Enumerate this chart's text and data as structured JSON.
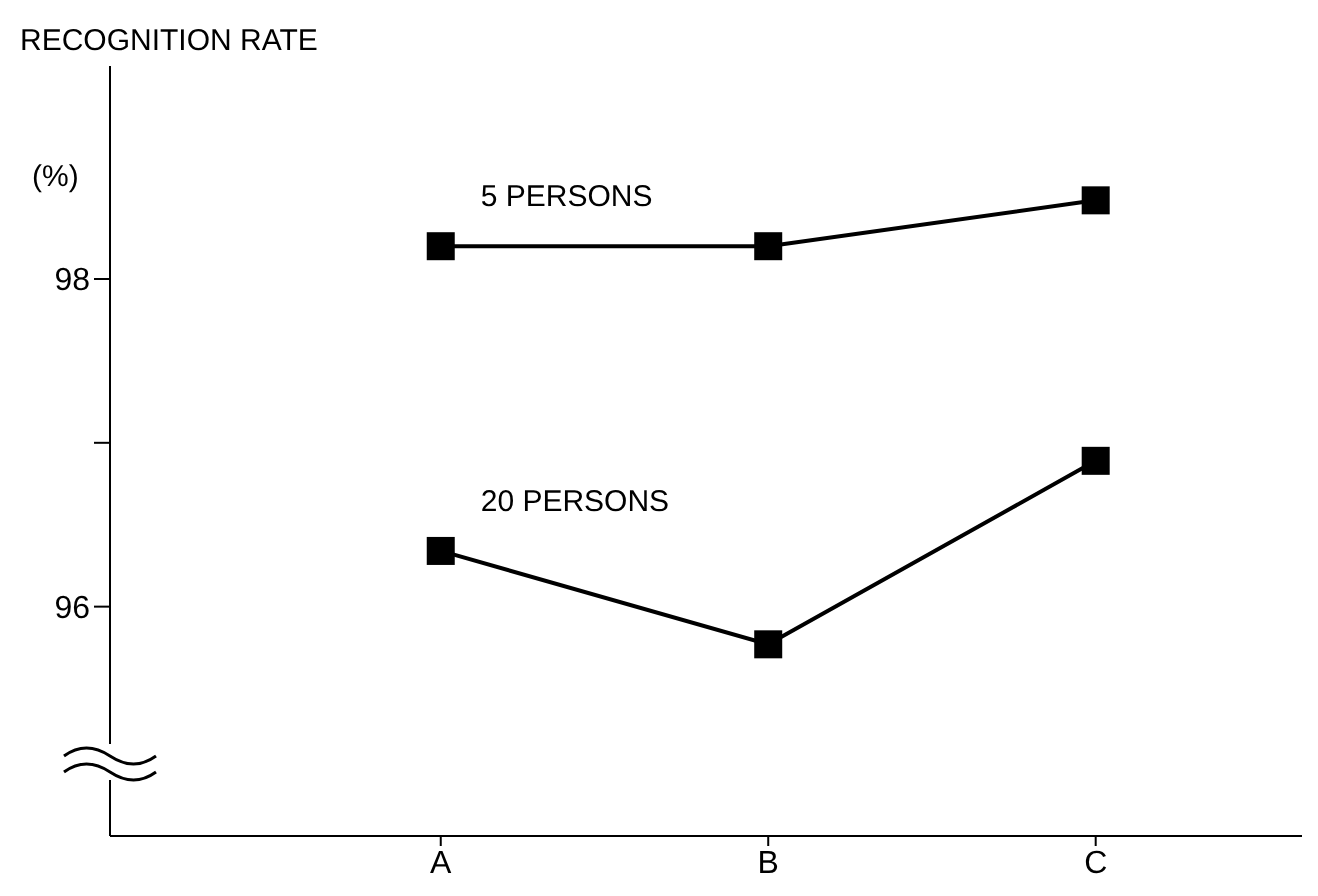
{
  "chart_data": {
    "type": "line",
    "ylabel": "RECOGNITION RATE",
    "annotations": [
      "(%)"
    ],
    "categories": [
      "A",
      "B",
      "C"
    ],
    "series": [
      {
        "name": "5 PERSONS",
        "color": "#000000",
        "values": [
          98.2,
          98.2,
          98.48
        ]
      },
      {
        "name": "20 PERSONS",
        "color": "#000000",
        "values": [
          96.34,
          95.77,
          96.89
        ]
      }
    ],
    "ylim": [
      94.6,
      99.3
    ],
    "yticks": [
      96,
      {
        "value": 97,
        "label": null
      },
      98
    ],
    "marker": "square",
    "line_style": "solid"
  }
}
